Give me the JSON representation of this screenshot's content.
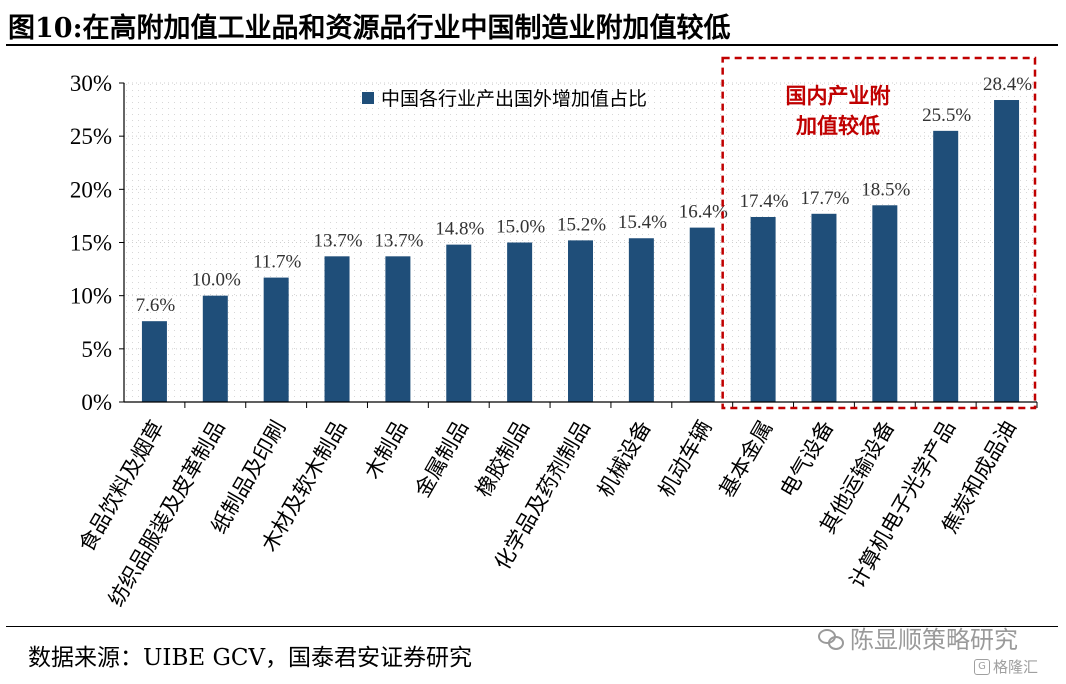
{
  "figure": {
    "title": "图10:在高附加值工业品和资源品行业中国制造业附加值较低",
    "source": "数据来源：UIBE GCV，国泰君安证券研究",
    "watermark": "陈显顺策略研究",
    "watermark2": "格隆汇",
    "watermark2_icon": "G"
  },
  "chart_data": {
    "type": "bar",
    "categories": [
      "食品饮料及烟草",
      "纺织品服装及皮革制品",
      "纸制品及印刷",
      "木材及软木制品",
      "木制品",
      "金属制品",
      "橡胶制品",
      "化学品及药剂制品",
      "机械设备",
      "机动车辆",
      "基本金属",
      "电气设备",
      "其他运输设备",
      "计算机电子光学产品",
      "焦炭和成品油"
    ],
    "series": [
      {
        "name": "中国各行业产出国外增加值占比",
        "values": [
          7.6,
          10.0,
          11.7,
          13.7,
          13.7,
          14.8,
          15.0,
          15.2,
          15.4,
          16.4,
          17.4,
          17.7,
          18.5,
          25.5,
          28.4
        ],
        "labels": [
          "7.6%",
          "10.0%",
          "11.7%",
          "13.7%",
          "13.7%",
          "14.8%",
          "15.0%",
          "15.2%",
          "15.4%",
          "16.4%",
          "17.4%",
          "17.7%",
          "18.5%",
          "25.5%",
          "28.4%"
        ],
        "color": "#1f4e79"
      }
    ],
    "ylim": [
      0,
      30
    ],
    "yticks": [
      "0%",
      "5%",
      "10%",
      "15%",
      "20%",
      "25%",
      "30%"
    ],
    "grid": "dotted",
    "legend": "top-center",
    "annotation": {
      "lines": [
        "国内产业附",
        "加值较低"
      ],
      "color": "#c00000",
      "covers_categories": [
        10,
        14
      ]
    }
  }
}
